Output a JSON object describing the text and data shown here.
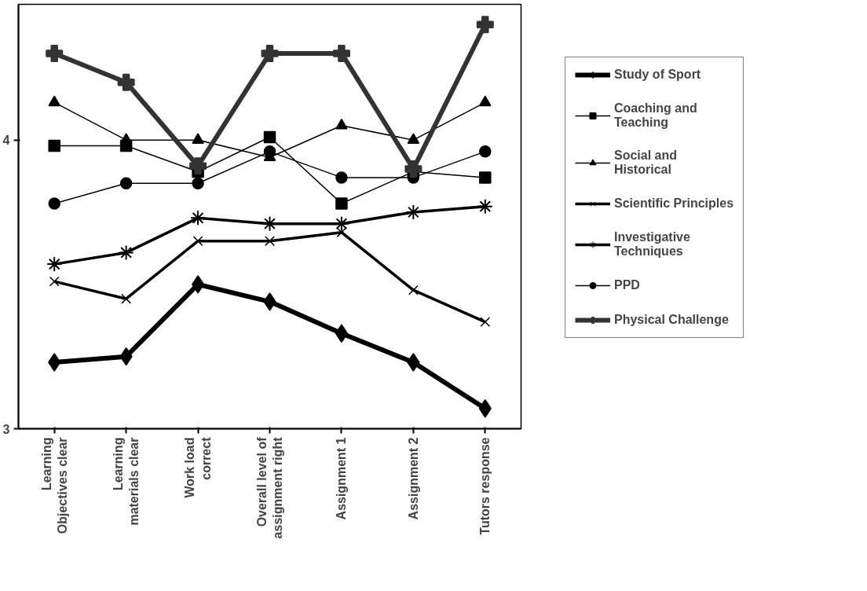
{
  "chart_data": {
    "type": "line",
    "categories": [
      "Learning\nObjectives clear",
      "Learning\nmaterials clear",
      "Work load\ncorrect",
      "Overall level of\nassignment right",
      "Assignment 1",
      "Assignment 2",
      "Tutors response"
    ],
    "ylim": [
      3,
      4.47
    ],
    "yticks": [
      3,
      4
    ],
    "grid": false,
    "legend": "right",
    "line_style": "solid",
    "series": [
      {
        "name": "Study of Sport",
        "color": "#000000",
        "marker": "diamond",
        "values": [
          3.23,
          3.25,
          3.5,
          3.44,
          3.33,
          3.23,
          3.07
        ]
      },
      {
        "name": "Coaching and\nTeaching",
        "color": "#000000",
        "marker": "square",
        "values": [
          3.98,
          3.98,
          3.89,
          4.01,
          3.78,
          3.89,
          3.87
        ]
      },
      {
        "name": "Social and\nHistorical",
        "color": "#000000",
        "marker": "triangle",
        "values": [
          4.13,
          4.0,
          4.0,
          3.94,
          4.05,
          4.0,
          4.13
        ]
      },
      {
        "name": "Scientific Principles",
        "color": "#000000",
        "marker": "x",
        "values": [
          3.51,
          3.45,
          3.65,
          3.65,
          3.68,
          3.48,
          3.37
        ]
      },
      {
        "name": "Investigative\nTechniques",
        "color": "#000000",
        "marker": "cross",
        "values": [
          3.57,
          3.61,
          3.73,
          3.71,
          3.71,
          3.75,
          3.77
        ]
      },
      {
        "name": "PPD",
        "color": "#000000",
        "marker": "circle",
        "values": [
          3.78,
          3.85,
          3.85,
          3.96,
          3.87,
          3.87,
          3.96
        ]
      },
      {
        "name": "Physical Challenge",
        "color": "#333333",
        "marker": "cross",
        "values": [
          4.3,
          4.2,
          3.91,
          4.3,
          4.3,
          3.9,
          4.4
        ]
      }
    ]
  }
}
